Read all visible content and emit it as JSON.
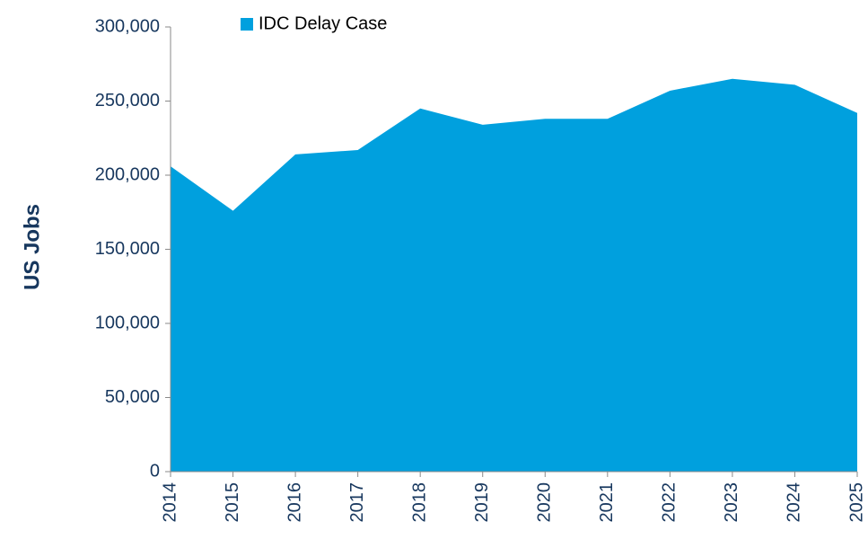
{
  "chart_data": {
    "type": "area",
    "ylabel": "US Jobs",
    "categories": [
      "2014",
      "2015",
      "2016",
      "2017",
      "2018",
      "2019",
      "2020",
      "2021",
      "2022",
      "2023",
      "2024",
      "2025"
    ],
    "series": [
      {
        "name": "IDC Delay Case",
        "color": "#00a0de",
        "values": [
          206000,
          176000,
          214000,
          217000,
          245000,
          234000,
          238000,
          238000,
          257000,
          265000,
          261000,
          242000
        ]
      }
    ],
    "ylim": [
      0,
      300000
    ],
    "yticks": [
      0,
      {
        "value": 50000,
        "label": "50,000"
      },
      {
        "value": 100000,
        "label": "100,000"
      },
      {
        "value": 150000,
        "label": "150,000"
      },
      {
        "value": 200000,
        "label": "200,000"
      },
      {
        "value": 250000,
        "label": "250,000"
      },
      {
        "value": 300000,
        "label": "300,000"
      }
    ],
    "legend": "top"
  }
}
